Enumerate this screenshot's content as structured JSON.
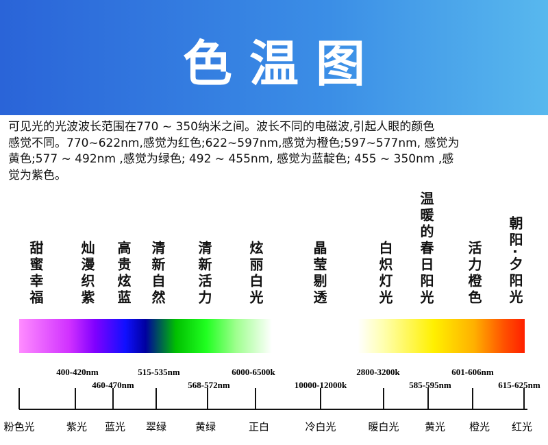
{
  "header": {
    "title": "色 温 图"
  },
  "intro": {
    "lines": [
      "可见光的光波波长范围在770 ~ 350纳米之间。波长不同的电磁波,引起人眼的颜色",
      "感觉不同。770~622nm,感觉为红色;622~597nm,感觉为橙色;597~577nm, 感觉为",
      "黄色;577 ~ 492nm ,感觉为绿色; 492 ~ 455nm, 感觉为蓝靛色; 455 ~ 350nm ,感",
      "觉为紫色。"
    ]
  },
  "mood_labels": [
    "甜蜜幸福",
    "灿漫织紫",
    "高贵炫蓝",
    "清新自然",
    "清新活力",
    "炫丽白光",
    "晶莹剔透",
    "白炽灯光",
    "温暖的春日阳光",
    "活力橙色",
    "朝阳·夕阳光"
  ],
  "ranges_upper": [
    "400-420nm",
    "515-535nm",
    "6000-6500k",
    "2800-3200k",
    "601-606nm"
  ],
  "ranges_lower": [
    "460-470nm",
    "568-572nm",
    "10000-12000k",
    "585-595nm",
    "615-625nm"
  ],
  "color_labels": [
    "粉色光",
    "紫光",
    "蓝光",
    "翠绿",
    "黄绿",
    "正白",
    "冷白光",
    "暖白光",
    "黄光",
    "橙光",
    "红光"
  ]
}
